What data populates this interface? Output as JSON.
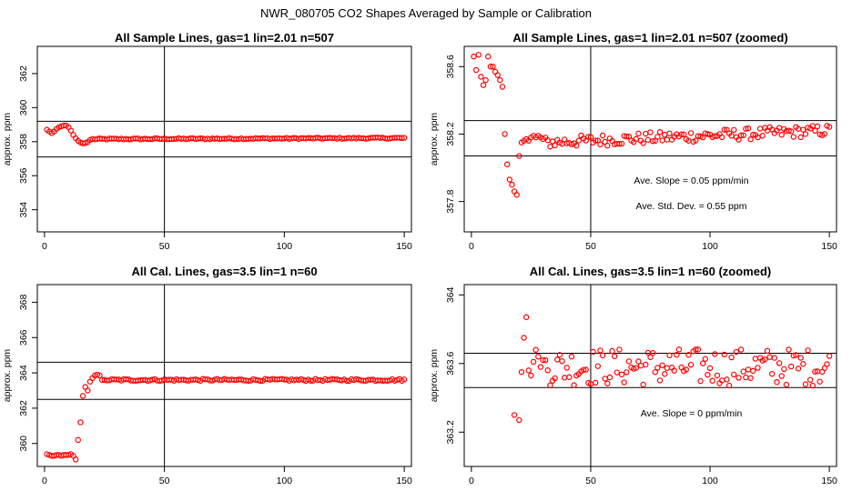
{
  "page_title": "NWR_080705  CO2 Shapes Averaged by Sample or Calibration",
  "colors": {
    "points": "#ff0000",
    "lines": "#000000",
    "background": "#ffffff"
  },
  "chart_data": [
    {
      "type": "scatter",
      "title": "All Sample Lines, gas=1 lin=2.01 n=507",
      "ylabel": "approx. ppm",
      "xlabel": "",
      "xlim": [
        -3,
        153
      ],
      "ylim": [
        352.7,
        363.6
      ],
      "xticks": [
        0,
        50,
        100,
        150
      ],
      "yticks": [
        354,
        356,
        358,
        360,
        362
      ],
      "vline": 50,
      "hlines": [
        357.1,
        359.2
      ],
      "annotations": [],
      "segments": [
        {
          "x": [
            1,
            2,
            3,
            4,
            5,
            6,
            7,
            8,
            9,
            10,
            11,
            12,
            13,
            14,
            15,
            16,
            17,
            18,
            19
          ],
          "y": [
            358.7,
            358.6,
            358.5,
            358.6,
            358.75,
            358.85,
            358.9,
            358.95,
            358.95,
            358.85,
            358.65,
            358.4,
            358.2,
            358.05,
            357.95,
            357.9,
            357.92,
            357.98,
            358.1
          ]
        },
        {
          "x0": 20,
          "x1": 150,
          "step": 1,
          "base": 358.15,
          "noise": 0.04,
          "trend": 0.0005
        }
      ]
    },
    {
      "type": "scatter",
      "title": "All Sample Lines, gas=1 lin=2.01 n=507 (zoomed)",
      "ylabel": "approx. ppm",
      "xlabel": "",
      "xlim": [
        -3,
        153
      ],
      "ylim": [
        357.62,
        358.72
      ],
      "xticks": [
        0,
        50,
        100,
        150
      ],
      "yticks": [
        357.8,
        358.2,
        358.6
      ],
      "vline": 50,
      "hlines": [
        358.07,
        358.28
      ],
      "annotations": [
        "Ave. Slope =  0.05  ppm/min",
        "Ave. Std. Dev. =  0.55  ppm"
      ],
      "segments": [
        {
          "x": [
            1,
            2,
            3,
            4,
            5,
            6,
            7,
            8,
            9,
            10,
            11,
            12,
            13,
            14,
            15,
            16,
            17,
            18,
            19,
            20,
            21,
            22,
            23,
            24,
            25,
            26,
            27,
            28,
            29,
            30
          ],
          "y": [
            358.66,
            358.58,
            358.67,
            358.54,
            358.49,
            358.52,
            358.66,
            358.6,
            358.6,
            358.57,
            358.55,
            358.52,
            358.48,
            358.2,
            358.02,
            357.93,
            357.9,
            357.86,
            357.84,
            358.07,
            358.15,
            358.16,
            358.17,
            358.16,
            358.18,
            358.19,
            358.18,
            358.19,
            358.18,
            358.17
          ]
        },
        {
          "x0": 31,
          "x1": 150,
          "step": 1,
          "base": 358.15,
          "noise": 0.035,
          "trend": 0.0006
        }
      ]
    },
    {
      "type": "scatter",
      "title": "All Cal. Lines, gas=3.5 lin=1 n=60",
      "ylabel": "approx. ppm",
      "xlabel": "",
      "xlim": [
        -3,
        153
      ],
      "ylim": [
        358.7,
        369.0
      ],
      "xticks": [
        0,
        50,
        100,
        150
      ],
      "yticks": [
        360,
        362,
        364,
        366,
        368
      ],
      "vline": 50,
      "hlines": [
        362.5,
        364.6
      ],
      "annotations": [],
      "segments": [
        {
          "x": [
            1,
            2,
            3,
            4,
            5,
            6,
            7,
            8,
            9,
            10,
            11,
            12,
            13,
            14,
            15,
            16,
            17,
            18,
            19,
            20,
            21,
            22,
            23,
            24,
            25
          ],
          "y": [
            359.4,
            359.35,
            359.3,
            359.3,
            359.35,
            359.35,
            359.3,
            359.35,
            359.35,
            359.35,
            359.4,
            359.3,
            359.1,
            360.2,
            361.2,
            362.7,
            363.2,
            363.0,
            363.5,
            363.7,
            363.85,
            363.9,
            363.85,
            363.6,
            363.6
          ]
        },
        {
          "x0": 26,
          "x1": 150,
          "step": 1,
          "base": 363.6,
          "noise": 0.06,
          "trend": 0
        }
      ]
    },
    {
      "type": "scatter",
      "title": "All Cal. Lines, gas=3.5 lin=1 n=60 (zoomed)",
      "ylabel": "approx. ppm",
      "xlabel": "",
      "xlim": [
        -3,
        153
      ],
      "ylim": [
        363.0,
        364.06
      ],
      "xticks": [
        0,
        50,
        100,
        150
      ],
      "yticks": [
        363.2,
        363.6,
        364.0
      ],
      "vline": 50,
      "hlines": [
        363.46,
        363.66
      ],
      "annotations": [
        "Ave. Slope =  0  ppm/min"
      ],
      "segments": [
        {
          "x": [
            18,
            20,
            21,
            22,
            23,
            24,
            25,
            26,
            27,
            28,
            29,
            30
          ],
          "y": [
            363.3,
            363.27,
            363.55,
            363.75,
            363.87,
            363.56,
            363.53,
            363.61,
            363.68,
            363.64,
            363.58,
            363.62
          ]
        },
        {
          "x0": 31,
          "x1": 150,
          "step": 1,
          "base": 363.58,
          "noise": 0.11,
          "trend": 0
        }
      ]
    }
  ]
}
